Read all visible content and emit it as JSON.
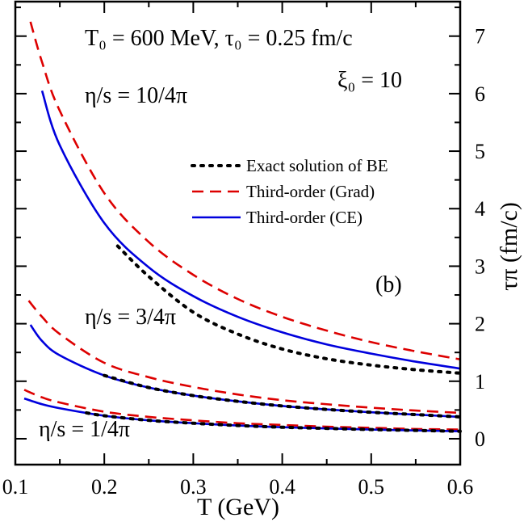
{
  "chart_data": {
    "type": "line",
    "xlabel": "T (GeV)",
    "ylabel_right": "τπ (fm/c)",
    "xlim": [
      0.1,
      0.6
    ],
    "ylim": [
      -0.45,
      7.6
    ],
    "x_ticks": [
      "0.1",
      "0.2",
      "0.3",
      "0.4",
      "0.5",
      "0.6"
    ],
    "y_ticks": [
      "0",
      "1",
      "2",
      "3",
      "4",
      "5",
      "6",
      "7"
    ],
    "grid": false,
    "legend_position": "upper-right",
    "legend": [
      {
        "label": "Exact solution of BE",
        "color": "#000000",
        "style": "dotted"
      },
      {
        "label": "Third-order (Grad)",
        "color": "#dd0000",
        "style": "dashed"
      },
      {
        "label": "Third-order (CE)",
        "color": "#0000dd",
        "style": "solid"
      }
    ],
    "annotations": {
      "header": "T₀ = 600 MeV,  τ₀ = 0.25 fm/c",
      "xi": "ξ₀ = 10",
      "panel": "(b)",
      "eta_10": "η/s = 10/4π",
      "eta_3": "η/s = 3/4π",
      "eta_1": "η/s = 1/4π"
    },
    "series": [
      {
        "group": "η/s = 10/4π",
        "style": "dashed",
        "color": "#dd0000",
        "x": [
          0.117,
          0.13,
          0.15,
          0.2,
          0.25,
          0.3,
          0.35,
          0.4,
          0.45,
          0.5,
          0.55,
          0.6
        ],
        "y": [
          7.25,
          6.55,
          5.7,
          4.27,
          3.42,
          2.85,
          2.43,
          2.12,
          1.88,
          1.68,
          1.52,
          1.38
        ]
      },
      {
        "group": "η/s = 10/4π",
        "style": "solid",
        "color": "#0000dd",
        "x": [
          0.13,
          0.15,
          0.2,
          0.25,
          0.3,
          0.35,
          0.4,
          0.45,
          0.5,
          0.55,
          0.6
        ],
        "y": [
          6.05,
          5.1,
          3.75,
          2.98,
          2.48,
          2.12,
          1.85,
          1.64,
          1.48,
          1.34,
          1.22
        ]
      },
      {
        "group": "η/s = 10/4π",
        "style": "dotted",
        "color": "#000000",
        "x": [
          0.215,
          0.25,
          0.3,
          0.35,
          0.4,
          0.45,
          0.5,
          0.55,
          0.6
        ],
        "y": [
          3.35,
          2.82,
          2.2,
          1.82,
          1.56,
          1.39,
          1.28,
          1.2,
          1.14
        ]
      },
      {
        "group": "η/s = 3/4π",
        "style": "dashed",
        "color": "#dd0000",
        "x": [
          0.115,
          0.13,
          0.15,
          0.2,
          0.25,
          0.3,
          0.35,
          0.4,
          0.45,
          0.5,
          0.55,
          0.6
        ],
        "y": [
          2.4,
          2.12,
          1.82,
          1.32,
          1.07,
          0.9,
          0.77,
          0.67,
          0.6,
          0.54,
          0.49,
          0.45
        ]
      },
      {
        "group": "η/s = 3/4π",
        "style": "solid",
        "color": "#0000dd",
        "x": [
          0.117,
          0.13,
          0.15,
          0.2,
          0.25,
          0.3,
          0.35,
          0.4,
          0.45,
          0.5,
          0.55,
          0.6
        ],
        "y": [
          1.98,
          1.7,
          1.45,
          1.1,
          0.89,
          0.75,
          0.65,
          0.57,
          0.51,
          0.46,
          0.42,
          0.38
        ]
      },
      {
        "group": "η/s = 3/4π",
        "style": "dotted",
        "color": "#000000",
        "x": [
          0.2,
          0.25,
          0.3,
          0.35,
          0.4,
          0.45,
          0.5,
          0.55,
          0.6
        ],
        "y": [
          1.1,
          0.89,
          0.75,
          0.65,
          0.57,
          0.51,
          0.46,
          0.42,
          0.38
        ]
      },
      {
        "group": "η/s = 1/4π",
        "style": "dashed",
        "color": "#dd0000",
        "x": [
          0.11,
          0.13,
          0.15,
          0.2,
          0.25,
          0.3,
          0.35,
          0.4,
          0.45,
          0.5,
          0.55,
          0.6
        ],
        "y": [
          0.85,
          0.72,
          0.63,
          0.47,
          0.38,
          0.32,
          0.27,
          0.24,
          0.21,
          0.19,
          0.17,
          0.16
        ]
      },
      {
        "group": "η/s = 1/4π",
        "style": "solid",
        "color": "#0000dd",
        "x": [
          0.11,
          0.13,
          0.15,
          0.2,
          0.25,
          0.3,
          0.35,
          0.4,
          0.45,
          0.5,
          0.55,
          0.6
        ],
        "y": [
          0.7,
          0.6,
          0.53,
          0.4,
          0.32,
          0.27,
          0.23,
          0.2,
          0.18,
          0.16,
          0.145,
          0.13
        ]
      },
      {
        "group": "η/s = 1/4π",
        "style": "dotted",
        "color": "#000000",
        "x": [
          0.18,
          0.2,
          0.25,
          0.3,
          0.35,
          0.4,
          0.45,
          0.5,
          0.55,
          0.6
        ],
        "y": [
          0.45,
          0.4,
          0.32,
          0.27,
          0.23,
          0.2,
          0.18,
          0.16,
          0.145,
          0.13
        ]
      }
    ]
  }
}
